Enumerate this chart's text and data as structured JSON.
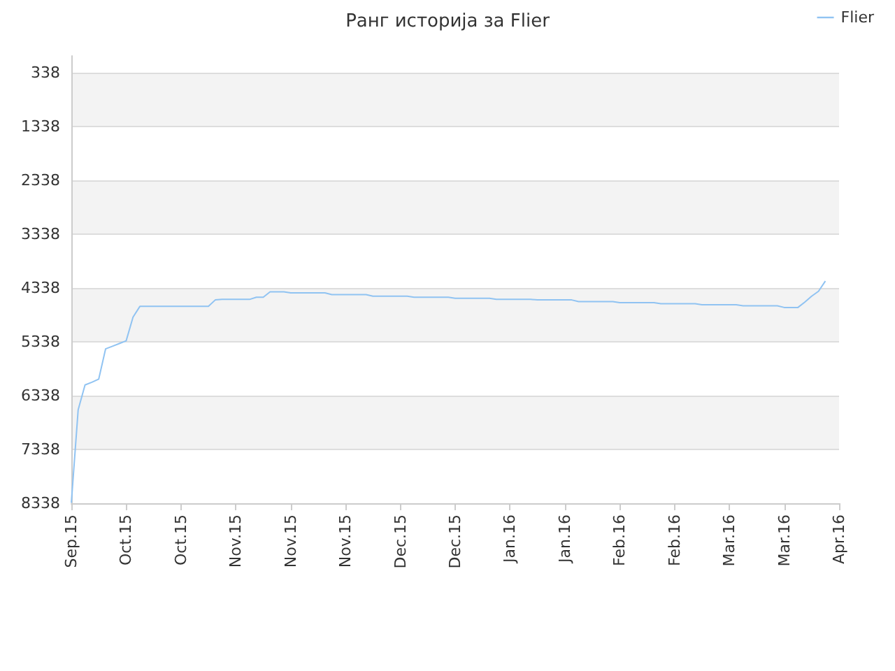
{
  "chart_data": {
    "type": "line",
    "title": "Ранг историја за Flier",
    "categories": [
      "Sep.15",
      null,
      null,
      null,
      null,
      null,
      null,
      null,
      "Oct.15",
      null,
      null,
      null,
      null,
      null,
      null,
      null,
      "Oct.15",
      null,
      null,
      null,
      null,
      null,
      null,
      null,
      "Nov.15",
      null,
      null,
      null,
      null,
      null,
      null,
      null,
      "Nov.15",
      null,
      null,
      null,
      null,
      null,
      null,
      null,
      "Nov.15",
      null,
      null,
      null,
      null,
      null,
      null,
      null,
      "Dec.15",
      null,
      null,
      null,
      null,
      null,
      null,
      null,
      "Dec.15",
      null,
      null,
      null,
      null,
      null,
      null,
      null,
      "Jan.16",
      null,
      null,
      null,
      null,
      null,
      null,
      null,
      "Jan.16",
      null,
      null,
      null,
      null,
      null,
      null,
      null,
      "Feb.16",
      null,
      null,
      null,
      null,
      null,
      null,
      null,
      "Feb.16",
      null,
      null,
      null,
      null,
      null,
      null,
      null,
      "Mar.16",
      null,
      null,
      null,
      null,
      null,
      null,
      null,
      "Mar.16",
      null,
      null,
      null,
      null,
      null,
      null,
      null,
      "Apr.16"
    ],
    "series": [
      {
        "name": "Flier",
        "color": "#90c3f2",
        "values": [
          8330,
          6600,
          6140,
          6090,
          6030,
          5470,
          5420,
          5370,
          5320,
          4880,
          4680,
          4680,
          4680,
          4680,
          4680,
          4680,
          4680,
          4680,
          4680,
          4680,
          4680,
          4560,
          4550,
          4550,
          4550,
          4550,
          4550,
          4510,
          4510,
          4410,
          4410,
          4410,
          4430,
          4430,
          4430,
          4430,
          4430,
          4430,
          4460,
          4460,
          4460,
          4460,
          4460,
          4460,
          4490,
          4490,
          4490,
          4490,
          4490,
          4490,
          4510,
          4510,
          4510,
          4510,
          4510,
          4510,
          4530,
          4530,
          4530,
          4530,
          4530,
          4530,
          4550,
          4550,
          4550,
          4550,
          4550,
          4550,
          4560,
          4560,
          4560,
          4560,
          4560,
          4560,
          4590,
          4590,
          4590,
          4590,
          4590,
          4590,
          4610,
          4610,
          4610,
          4610,
          4610,
          4610,
          4630,
          4630,
          4630,
          4630,
          4630,
          4630,
          4650,
          4650,
          4650,
          4650,
          4650,
          4650,
          4670,
          4670,
          4670,
          4670,
          4670,
          4670,
          4700,
          4700,
          4700,
          4600,
          4490,
          4400,
          4210,
          null,
          null
        ]
      }
    ],
    "ylim": [
      8338,
      26
    ],
    "yticks": [
      338,
      1338,
      2338,
      3338,
      4338,
      5338,
      6338,
      7338,
      8338
    ],
    "grid": "y",
    "legend": "top right",
    "marker": "none",
    "line_style": "solid"
  }
}
